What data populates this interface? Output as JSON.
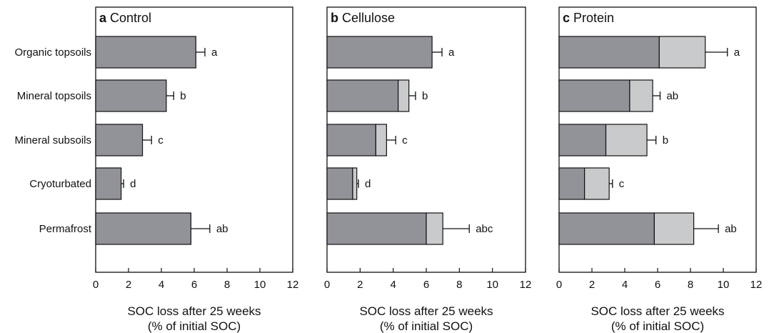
{
  "chart_data": [
    {
      "type": "bar",
      "panel_letter": "a",
      "title": "Control",
      "categories": [
        "Organic topsoils",
        "Mineral topsoils",
        "Mineral subsoils",
        "Cryoturbated",
        "Permafrost"
      ],
      "series": [
        {
          "values": [
            6.1,
            4.3,
            2.85,
            1.55,
            5.8
          ]
        }
      ],
      "error": [
        0.55,
        0.45,
        0.55,
        0.15,
        1.15
      ],
      "letters": [
        "a",
        "b",
        "c",
        "d",
        "ab"
      ],
      "xlim": [
        0,
        12
      ],
      "xticks": [
        0,
        2,
        4,
        6,
        8,
        10,
        12
      ],
      "xlabel": [
        "SOC loss after 25 weeks",
        "(% of initial SOC)"
      ],
      "colors": {
        "base": "#929398",
        "extra": "#c9cacc"
      }
    },
    {
      "type": "bar",
      "panel_letter": "b",
      "title": "Cellulose",
      "categories": [
        "Organic topsoils",
        "Mineral topsoils",
        "Mineral subsoils",
        "Cryoturbated",
        "Permafrost"
      ],
      "series": [
        {
          "values": [
            6.35,
            4.3,
            2.95,
            1.55,
            6.0
          ]
        },
        {
          "values": [
            0.0,
            0.65,
            0.65,
            0.25,
            1.0
          ]
        }
      ],
      "error": [
        0.6,
        0.4,
        0.55,
        0.1,
        1.6
      ],
      "letters": [
        "a",
        "b",
        "c",
        "d",
        "abc"
      ],
      "xlim": [
        0,
        12
      ],
      "xticks": [
        0,
        2,
        4,
        6,
        8,
        10,
        12
      ],
      "xlabel": [
        "SOC loss after 25 weeks",
        "(% of initial SOC)"
      ],
      "colors": {
        "base": "#929398",
        "extra": "#c9cacc"
      }
    },
    {
      "type": "bar",
      "panel_letter": "c",
      "title": "Protein",
      "categories": [
        "Organic topsoils",
        "Mineral topsoils",
        "Mineral subsoils",
        "Cryoturbated",
        "Permafrost"
      ],
      "series": [
        {
          "values": [
            6.1,
            4.3,
            2.85,
            1.55,
            5.8
          ]
        },
        {
          "values": [
            2.8,
            1.4,
            2.5,
            1.5,
            2.4
          ]
        }
      ],
      "error": [
        1.35,
        0.45,
        0.55,
        0.2,
        1.5
      ],
      "letters": [
        "a",
        "ab",
        "b",
        "c",
        "ab"
      ],
      "xlim": [
        0,
        12
      ],
      "xticks": [
        0,
        2,
        4,
        6,
        8,
        10,
        12
      ],
      "xlabel": [
        "SOC loss after 25 weeks",
        "(% of initial SOC)"
      ],
      "colors": {
        "base": "#929398",
        "extra": "#c9cacc"
      }
    }
  ]
}
